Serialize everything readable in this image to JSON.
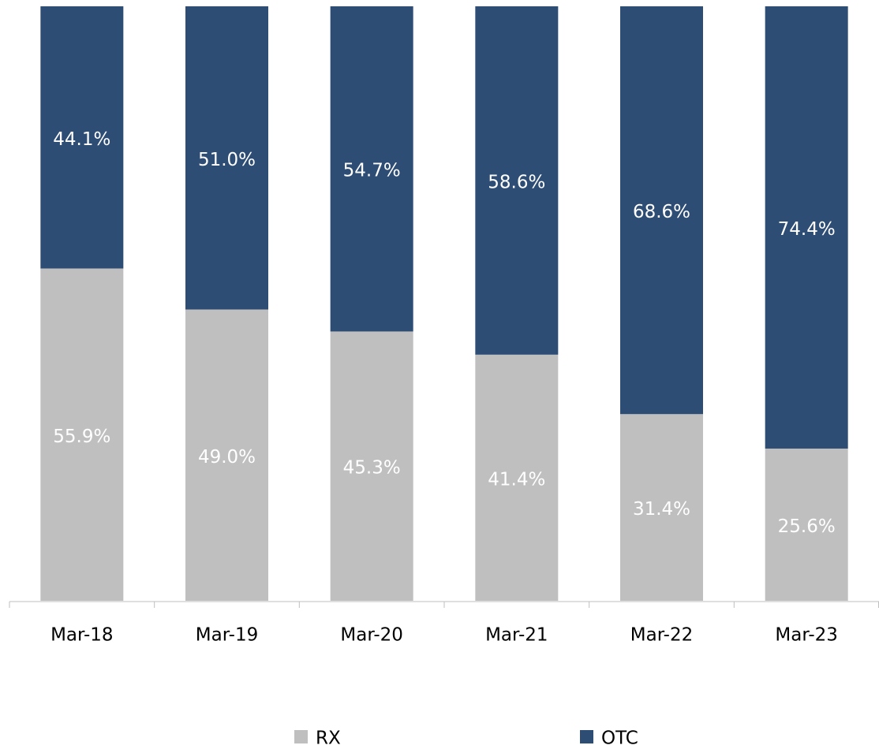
{
  "chart_data": {
    "type": "stacked_bar",
    "categories": [
      "Mar-18",
      "Mar-19",
      "Mar-20",
      "Mar-21",
      "Mar-22",
      "Mar-23"
    ],
    "series": [
      {
        "name": "RX",
        "color": "#bfbfbf",
        "values": [
          55.9,
          49.0,
          45.3,
          41.4,
          31.4,
          25.6
        ],
        "value_labels": [
          "55.9%",
          "49.0%",
          "45.3%",
          "41.4%",
          "31.4%",
          "25.6%"
        ]
      },
      {
        "name": "OTC",
        "color": "#2e4d75",
        "values": [
          44.1,
          51.0,
          54.7,
          58.6,
          68.6,
          74.4
        ],
        "value_labels": [
          "44.1%",
          "51.0%",
          "54.7%",
          "58.6%",
          "68.6%",
          "74.4%"
        ]
      }
    ],
    "ylim": [
      0,
      100
    ]
  }
}
